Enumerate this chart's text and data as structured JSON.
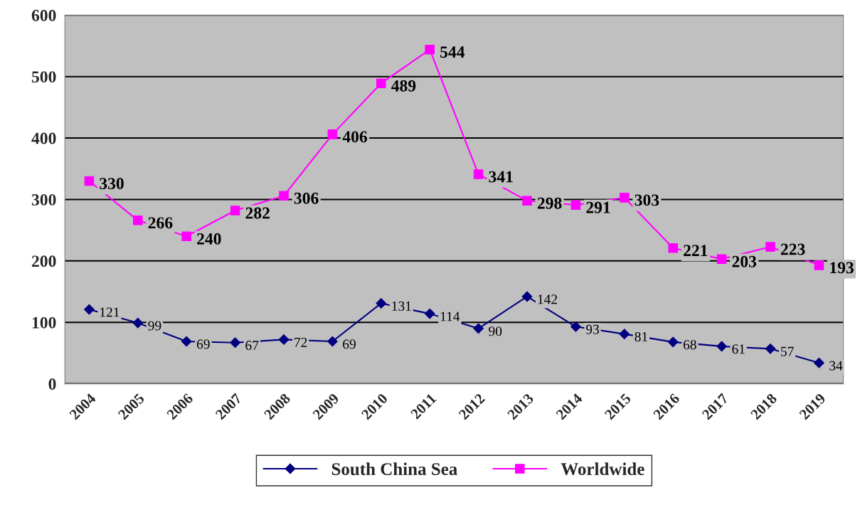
{
  "chart_data": {
    "type": "line",
    "categories": [
      "2004",
      "2005",
      "2006",
      "2007",
      "2008",
      "2009",
      "2010",
      "2011",
      "2012",
      "2013",
      "2014",
      "2015",
      "2016",
      "2017",
      "2018",
      "2019"
    ],
    "series": [
      {
        "name": "South China Sea",
        "color": "#000080",
        "marker": "diamond",
        "values": [
          121,
          99,
          69,
          67,
          72,
          69,
          131,
          114,
          90,
          142,
          93,
          81,
          68,
          61,
          57,
          34
        ]
      },
      {
        "name": "Worldwide",
        "color": "#ff00ff",
        "marker": "square",
        "values": [
          330,
          266,
          240,
          282,
          306,
          406,
          489,
          544,
          341,
          298,
          291,
          303,
          221,
          203,
          223,
          193
        ]
      }
    ],
    "ylim": [
      0,
      600
    ],
    "yticks": [
      0,
      100,
      200,
      300,
      400,
      500,
      600
    ],
    "grid": "y",
    "legend": "bottom",
    "data_labels": true
  }
}
